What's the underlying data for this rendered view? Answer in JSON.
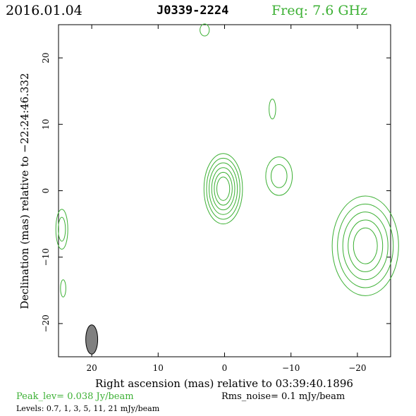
{
  "header": {
    "date": "2016.01.04",
    "source": "J0339-2224",
    "freq": "Freq: 7.6 GHz"
  },
  "colors": {
    "contour": "#3cb034",
    "axis": "#000000",
    "beam": "#808080"
  },
  "chart_data": {
    "type": "contour",
    "xlabel": "Right ascension (mas) relative to 03:39:40.1896",
    "ylabel": "Declination (mas) relative to −22:24:46.332",
    "xlim": [
      25,
      -25
    ],
    "ylim": [
      -25,
      25
    ],
    "xticks": [
      20,
      10,
      0,
      -10,
      -20
    ],
    "xtick_labels": [
      "20",
      "10",
      "0",
      "−10",
      "−20"
    ],
    "yticks": [
      20,
      10,
      0,
      -10,
      -20
    ],
    "ytick_labels": [
      "20",
      "10",
      "0",
      "−10",
      "−20"
    ],
    "components": [
      {
        "x": 0.2,
        "y": 0.3,
        "levels": 6,
        "rx_outer": 2.9,
        "ry_outer": 5.3
      },
      {
        "x": -8.2,
        "y": 2.2,
        "levels": 2,
        "rx_outer": 2.0,
        "ry_outer": 2.9
      },
      {
        "x": -7.2,
        "y": 12.3,
        "levels": 1,
        "rx_outer": 0.5,
        "ry_outer": 1.5
      },
      {
        "x": 3.0,
        "y": 24.2,
        "levels": 1,
        "rx_outer": 0.7,
        "ry_outer": 0.9
      },
      {
        "x": 24.5,
        "y": -5.8,
        "levels": 2,
        "rx_outer": 0.9,
        "ry_outer": 3.0
      },
      {
        "x": 24.3,
        "y": -14.7,
        "levels": 1,
        "rx_outer": 0.4,
        "ry_outer": 1.3
      },
      {
        "x": -21.2,
        "y": -8.3,
        "levels": 5,
        "rx_outer": 5.0,
        "ry_outer": 7.5
      }
    ],
    "beam": {
      "x": 20,
      "y": -22.4,
      "major": 4.4,
      "minor": 1.8,
      "pa": 0
    }
  },
  "footer": {
    "peak": "Peak_lev=  0.038 Jy/beam",
    "rms": "Rms_noise=   0.1 mJy/beam",
    "levels": "Levels: 0.7,   1,   3,   5,   11,   21 mJy/beam"
  }
}
